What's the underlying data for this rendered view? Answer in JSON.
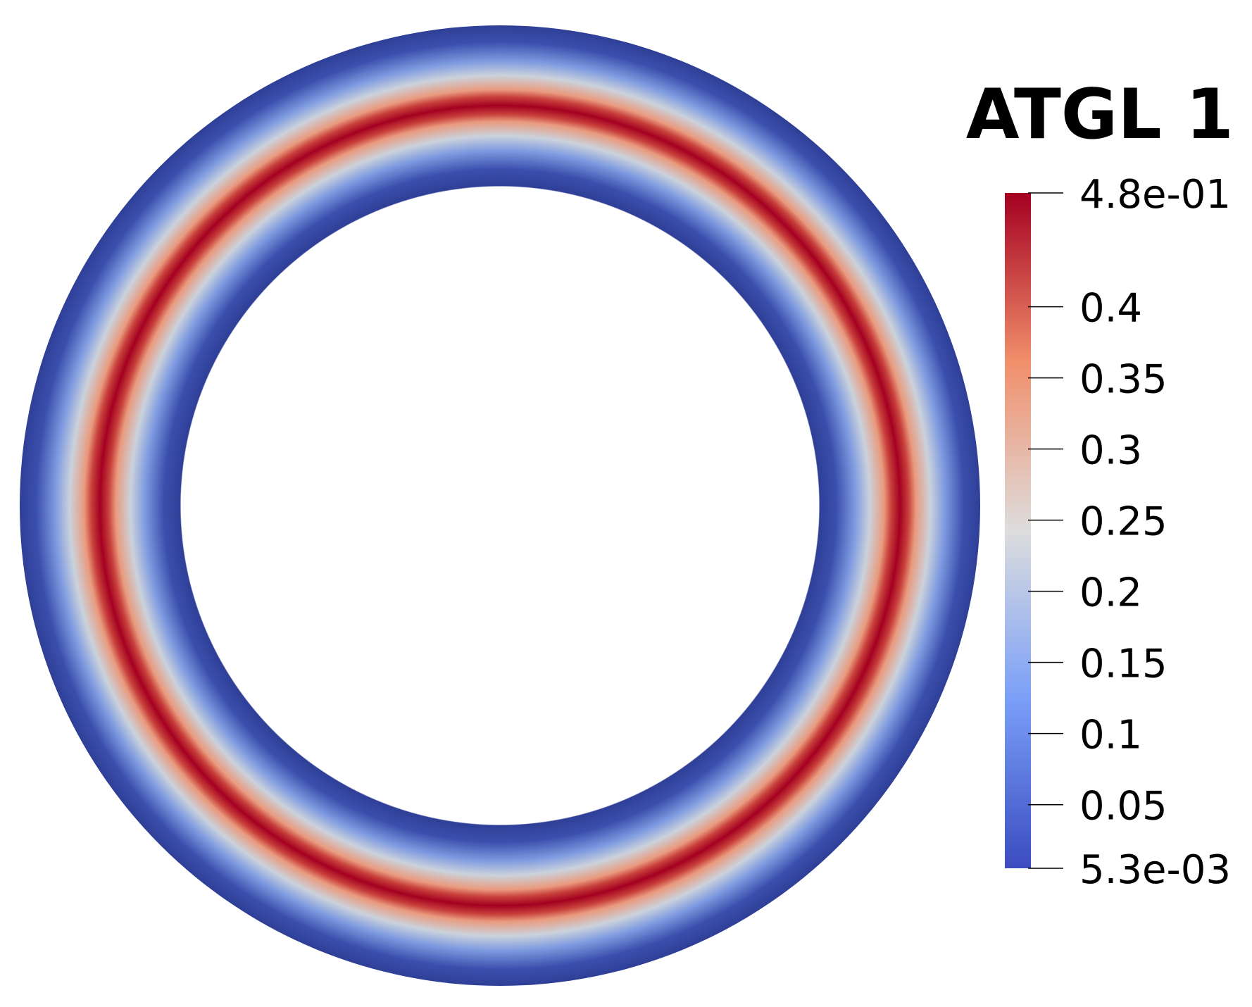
{
  "legend": {
    "title": "ATGL 1",
    "range_labels": {
      "max": "4.8e-01",
      "min": "5.3e-03"
    },
    "range": [
      0.0053,
      0.48
    ],
    "ticks": [
      {
        "value": 0.4,
        "label": "0.4"
      },
      {
        "value": 0.35,
        "label": "0.35"
      },
      {
        "value": 0.3,
        "label": "0.3"
      },
      {
        "value": 0.25,
        "label": "0.25"
      },
      {
        "value": 0.2,
        "label": "0.2"
      },
      {
        "value": 0.15,
        "label": "0.15"
      },
      {
        "value": 0.1,
        "label": "0.1"
      },
      {
        "value": 0.05,
        "label": "0.05"
      }
    ],
    "colormap": "cool-to-warm",
    "colormap_stops": [
      {
        "t": 0.0,
        "color": "#3b4cc0"
      },
      {
        "t": 0.25,
        "color": "#7a9ff8"
      },
      {
        "t": 0.5,
        "color": "#dddddd"
      },
      {
        "t": 0.75,
        "color": "#f18f6b"
      },
      {
        "t": 1.0,
        "color": "#a40021"
      }
    ]
  },
  "field": {
    "shape": "annulus",
    "profile": "gaussian band peaking at ring mid-radius",
    "edge_color": "#2f3f97",
    "peak_color": "#a40021"
  }
}
